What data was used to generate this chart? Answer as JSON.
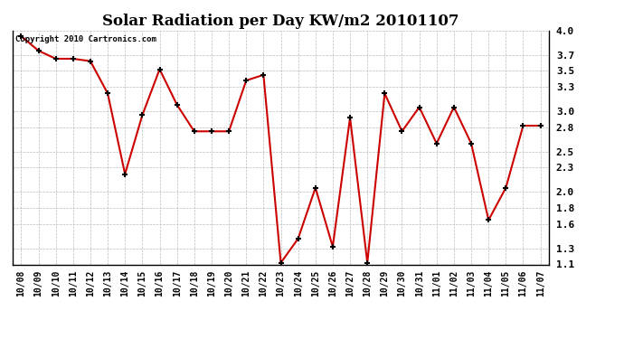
{
  "title": "Solar Radiation per Day KW/m2 20101107",
  "copyright_text": "Copyright 2010 Cartronics.com",
  "labels": [
    "10/08",
    "10/09",
    "10/10",
    "10/11",
    "10/12",
    "10/13",
    "10/14",
    "10/15",
    "10/16",
    "10/17",
    "10/18",
    "10/19",
    "10/20",
    "10/21",
    "10/22",
    "10/23",
    "10/24",
    "10/25",
    "10/26",
    "10/27",
    "10/28",
    "10/29",
    "10/30",
    "10/31",
    "11/01",
    "11/02",
    "11/03",
    "11/04",
    "11/05",
    "11/06",
    "11/07"
  ],
  "values": [
    3.93,
    3.75,
    3.65,
    3.65,
    3.62,
    3.22,
    2.22,
    2.95,
    3.52,
    3.08,
    2.75,
    2.75,
    2.75,
    3.38,
    3.45,
    1.12,
    1.42,
    2.05,
    1.32,
    2.92,
    1.12,
    3.22,
    2.75,
    3.05,
    2.6,
    3.05,
    2.6,
    1.65,
    2.05,
    2.82,
    2.82
  ],
  "line_color": "#cc0000",
  "marker_color": "#000000",
  "bg_color": "#ffffff",
  "grid_color": "#bbbbbb",
  "ylim": [
    1.1,
    4.0
  ],
  "yticks": [
    1.1,
    1.3,
    1.6,
    1.8,
    2.0,
    2.3,
    2.5,
    2.8,
    3.0,
    3.3,
    3.5,
    3.7,
    4.0
  ],
  "title_fontsize": 12,
  "tick_fontsize": 7,
  "copyright_fontsize": 6.5,
  "fig_width": 6.9,
  "fig_height": 3.75,
  "dpi": 100
}
